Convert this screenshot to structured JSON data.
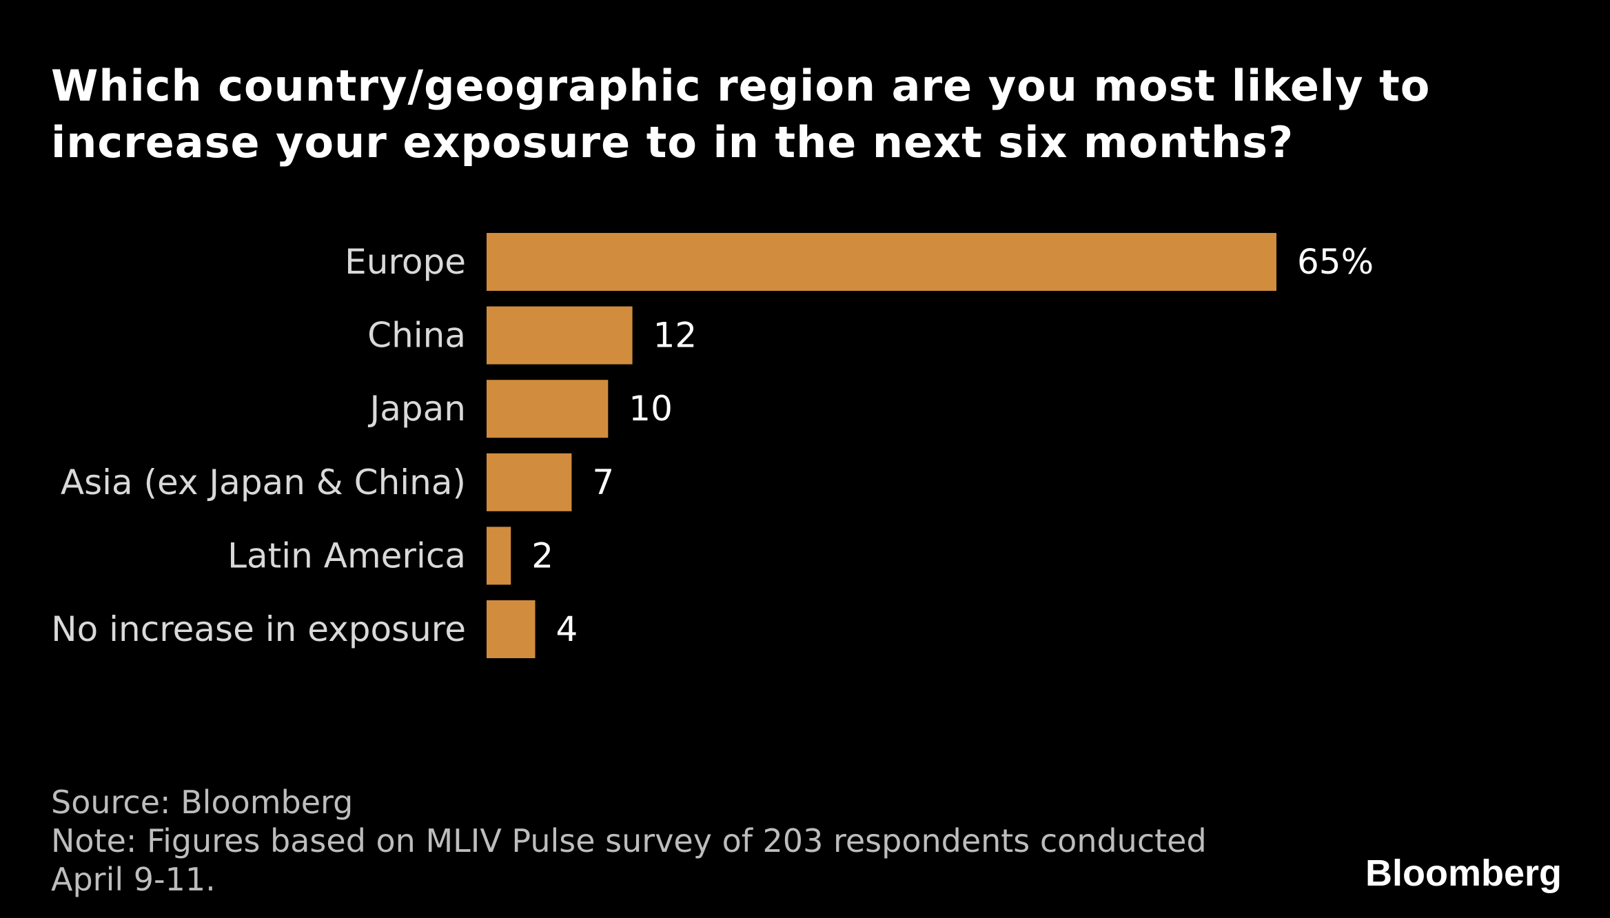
{
  "chart_data": {
    "type": "bar",
    "orientation": "horizontal",
    "title_lines": [
      "Which country/geographic region are you most likely to",
      "increase your exposure to in the next six months?"
    ],
    "categories": [
      "Europe",
      "China",
      "Japan",
      "Asia (ex Japan & China)",
      "Latin America",
      "No increase in exposure"
    ],
    "values": [
      65,
      12,
      10,
      7,
      2,
      4
    ],
    "value_labels": [
      "65%",
      "12",
      "10",
      "7",
      "2",
      "4"
    ],
    "unit": "%",
    "xlim": [
      0,
      65
    ],
    "grid": false,
    "legend": "none",
    "bar_color": "#d18c3e",
    "background_color": "#000000"
  },
  "footer": {
    "source": "Source: Bloomberg",
    "note_lines": [
      "Note: Figures based on MLIV Pulse survey of 203 respondents conducted",
      "April 9-11."
    ]
  },
  "brand": "Bloomberg"
}
